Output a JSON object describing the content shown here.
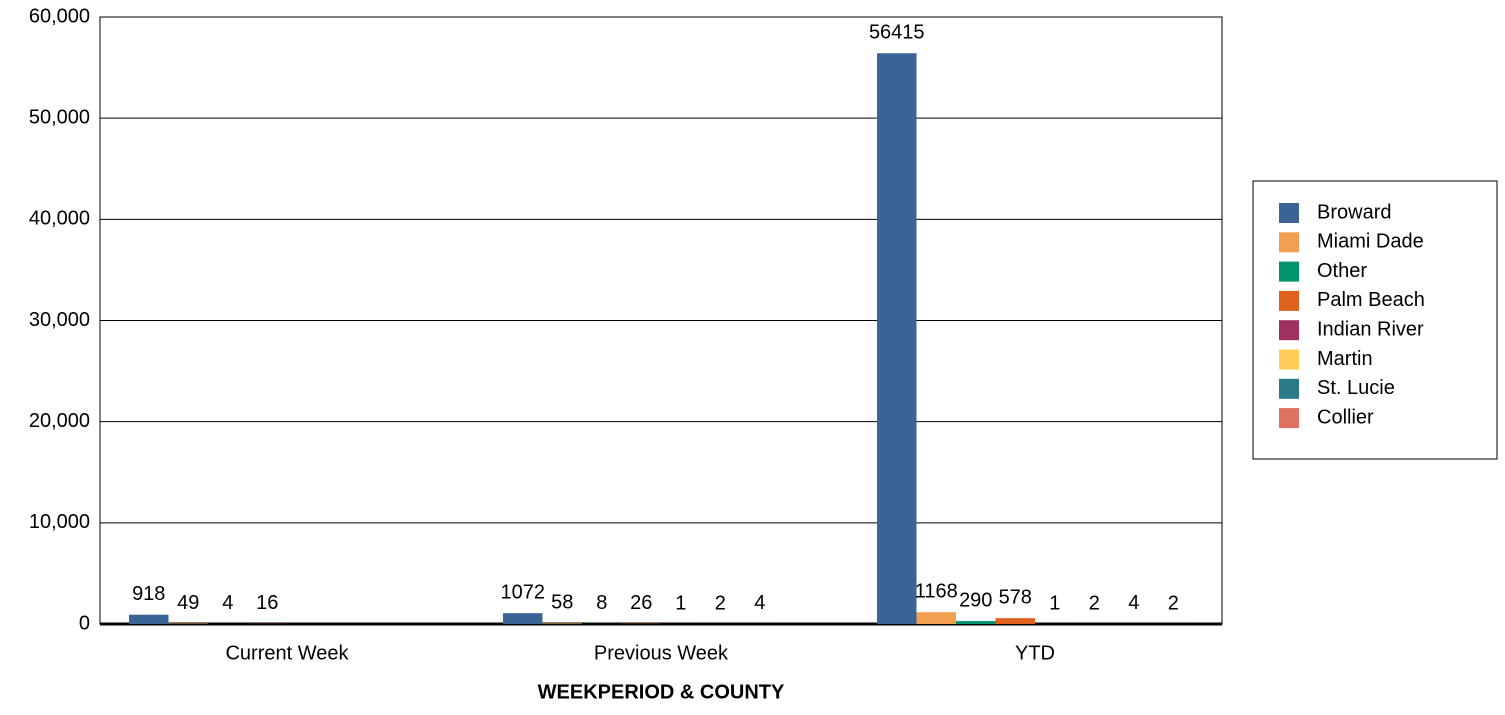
{
  "chart_data": {
    "type": "bar",
    "x_label": "WEEKPERIOD & COUNTY",
    "categories": [
      "Current Week",
      "Previous Week",
      "YTD"
    ],
    "series": [
      {
        "name": "Broward",
        "color": "#3a6496",
        "values": [
          918,
          1072,
          56415
        ]
      },
      {
        "name": "Miami Dade",
        "color": "#f0a050",
        "values": [
          49,
          58,
          1168
        ]
      },
      {
        "name": "Other",
        "color": "#00936e",
        "values": [
          4,
          8,
          290
        ]
      },
      {
        "name": "Palm Beach",
        "color": "#e0601e",
        "values": [
          16,
          26,
          578
        ]
      },
      {
        "name": "Indian River",
        "color": "#a03060",
        "values": [
          null,
          1,
          1
        ]
      },
      {
        "name": "Martin",
        "color": "#ffcc55",
        "values": [
          null,
          2,
          2
        ]
      },
      {
        "name": "St. Lucie",
        "color": "#2a7a8a",
        "values": [
          null,
          4,
          4
        ]
      },
      {
        "name": "Collier",
        "color": "#e07060",
        "values": [
          null,
          null,
          2
        ]
      }
    ],
    "ylim": [
      0,
      60000
    ],
    "yticks": [
      0,
      {
        "value": 10000,
        "label": "10,000"
      },
      {
        "value": 20000,
        "label": "20,000"
      },
      {
        "value": 30000,
        "label": "30,000"
      },
      {
        "value": 40000,
        "label": "40,000"
      },
      {
        "value": 50000,
        "label": "50,000"
      },
      {
        "value": 60000,
        "label": "60,000"
      }
    ],
    "grid": true,
    "legend": "right"
  }
}
